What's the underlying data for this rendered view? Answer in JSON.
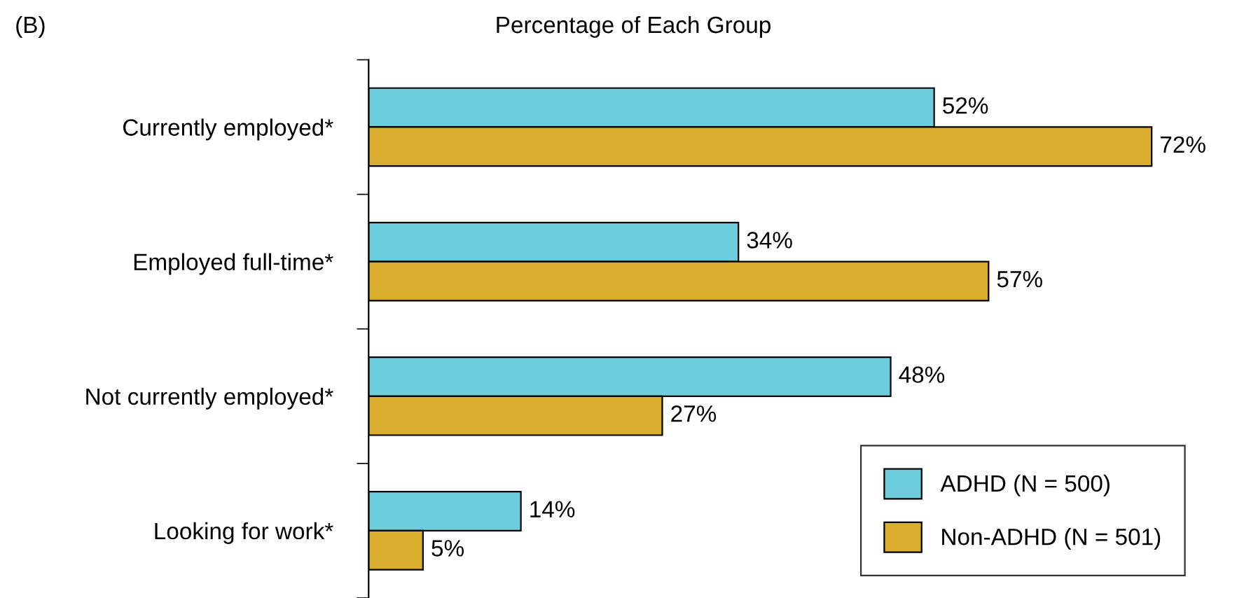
{
  "chart_data": {
    "type": "bar",
    "orientation": "horizontal",
    "title": "Percentage of Each Group",
    "annotations": [
      "(B)"
    ],
    "categories": [
      "Currently employed*",
      "Employed full-time*",
      "Not currently employed*",
      "Looking for work*"
    ],
    "series": [
      {
        "name": "ADHD (N = 500)",
        "color": "#6dcddd",
        "values": [
          52,
          34,
          48,
          14
        ],
        "value_labels": [
          "52%",
          "34%",
          "48%",
          "14%"
        ]
      },
      {
        "name": "Non-ADHD (N = 501)",
        "color": "#d9ae2c",
        "values": [
          72,
          57,
          27,
          5
        ],
        "value_labels": [
          "72%",
          "57%",
          "27%",
          "5%"
        ]
      }
    ],
    "legend": "bottom right",
    "grid": false
  }
}
